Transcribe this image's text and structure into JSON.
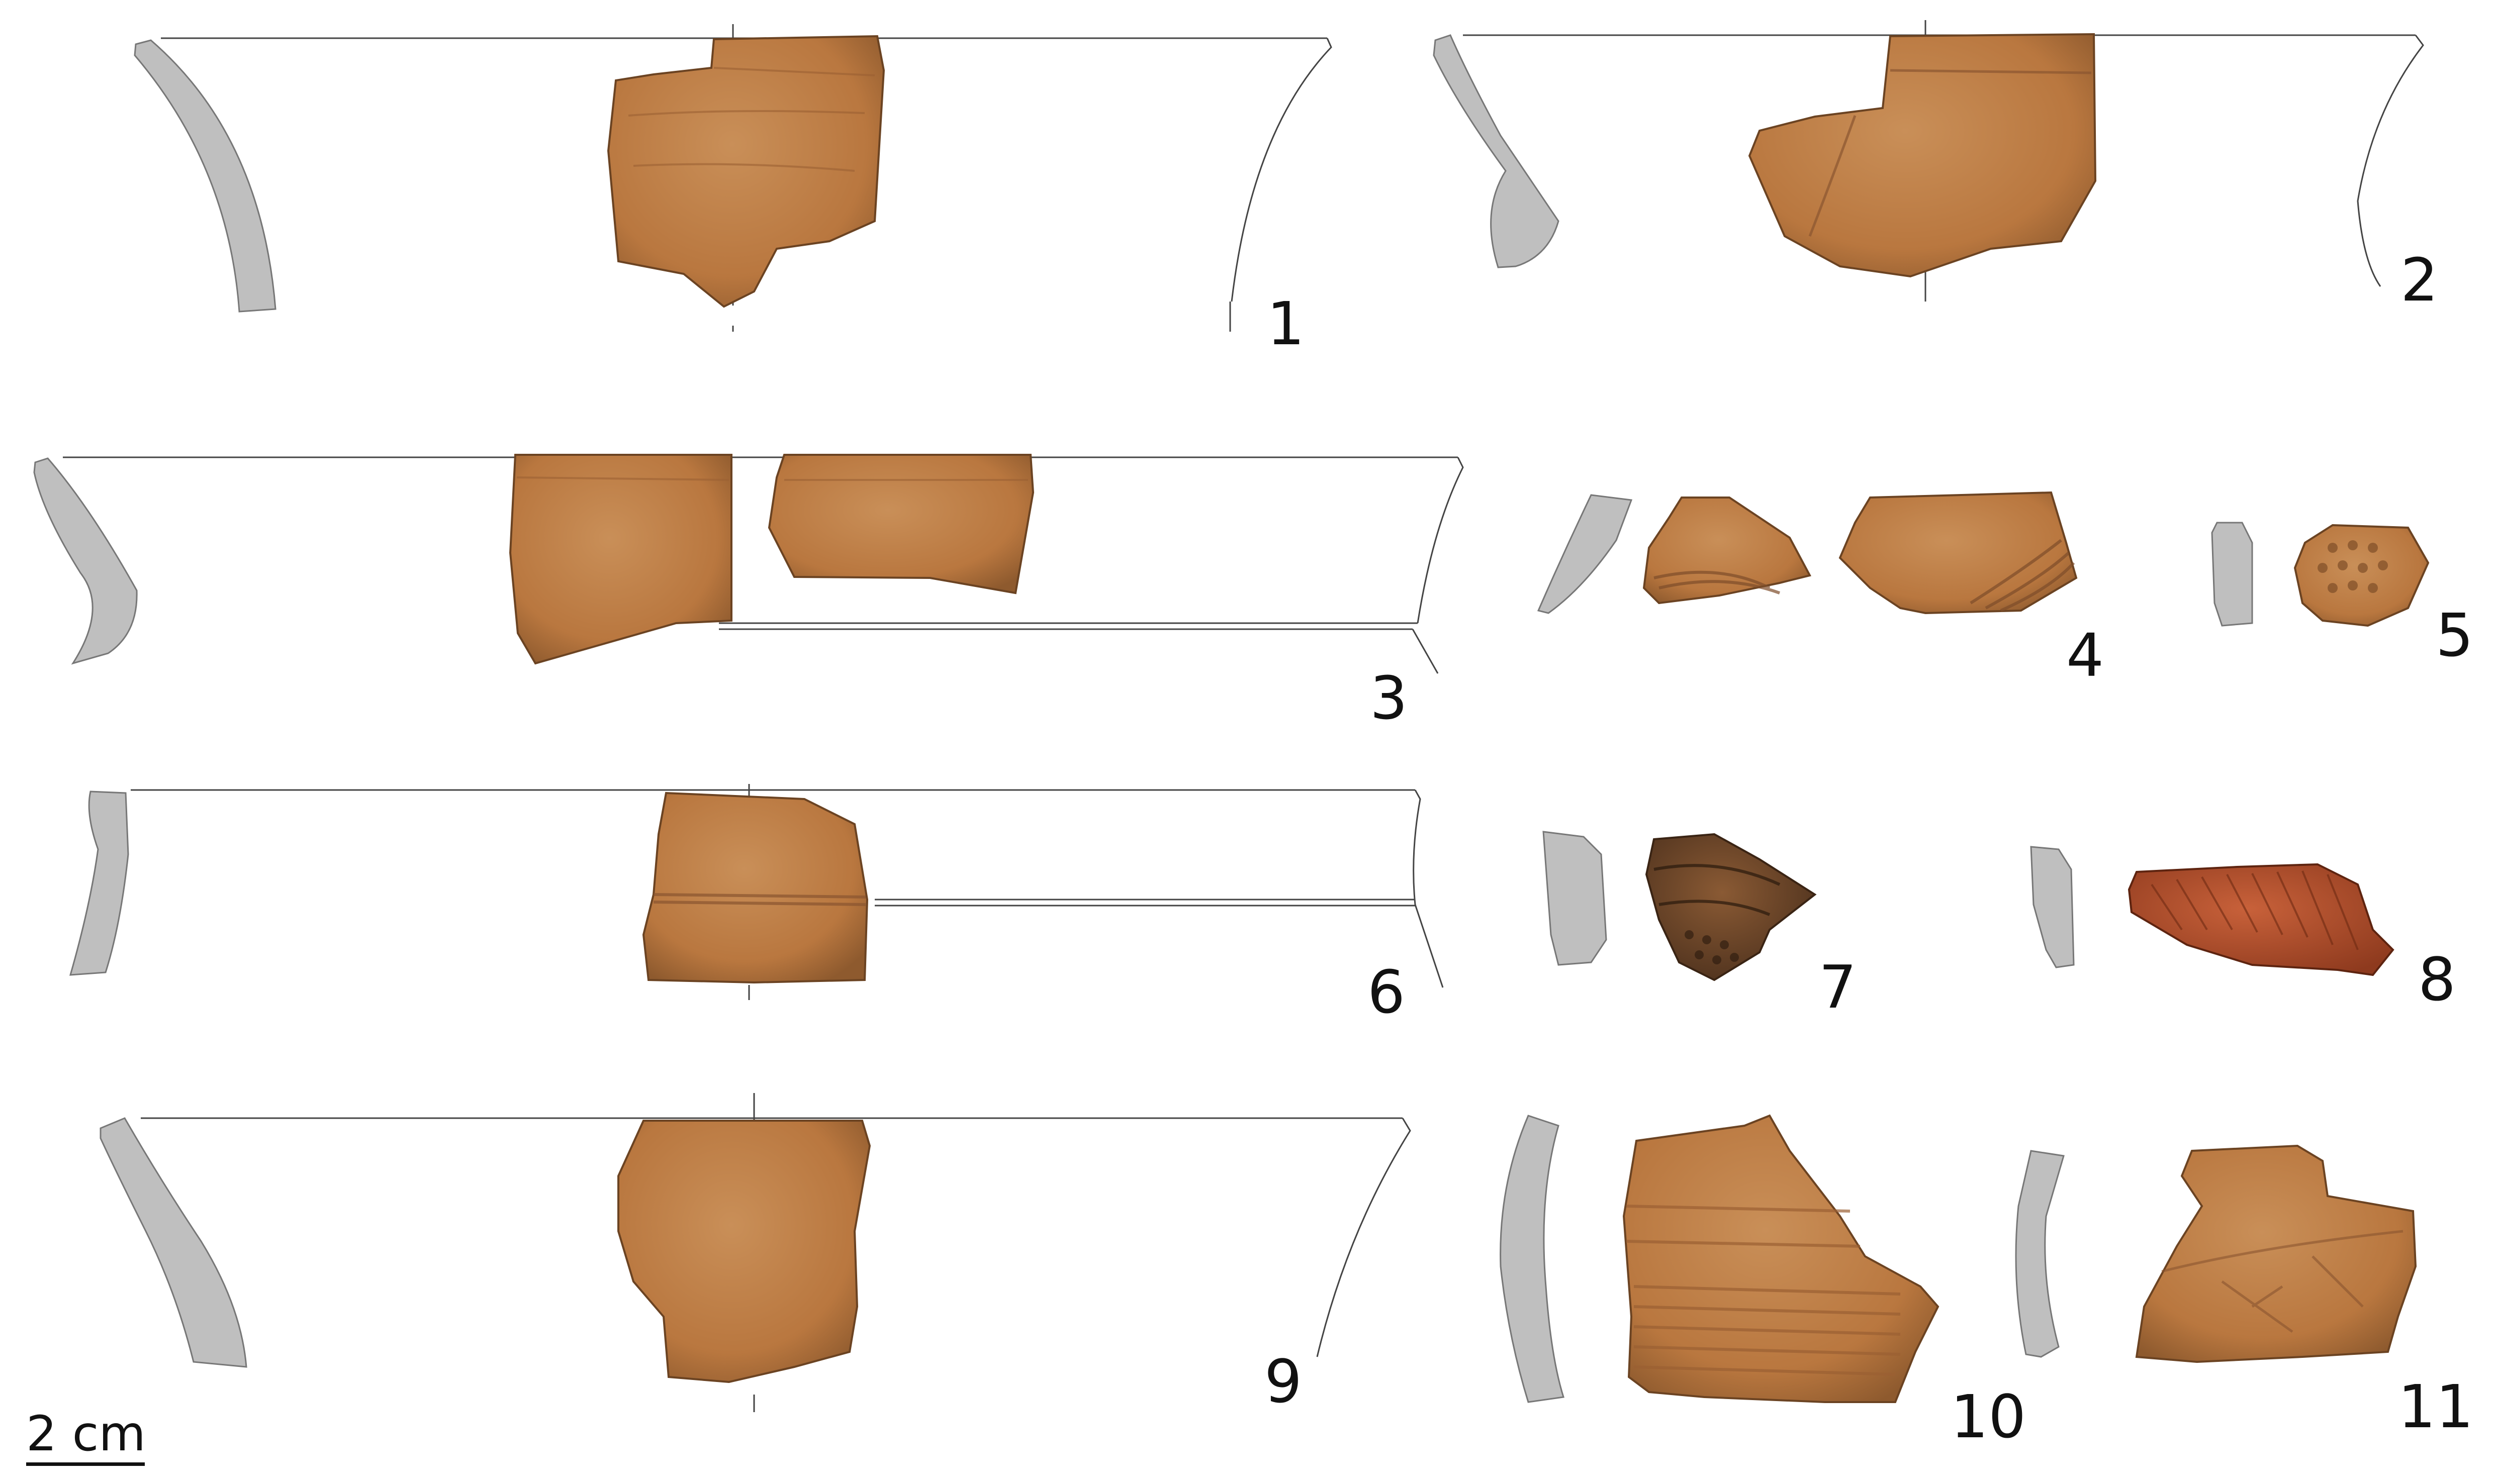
{
  "plate": {
    "background": "#ffffff",
    "outline_color": "#444444",
    "section_fill": "#bfbfbf",
    "sherd_color_main": "#b9773f",
    "sherd_color_light": "#c98f58",
    "sherd_color_dark": "#5b3a22",
    "sherd_color_red": "#b8502a"
  },
  "figures": [
    {
      "id": "1",
      "label": "1"
    },
    {
      "id": "2",
      "label": "2"
    },
    {
      "id": "3",
      "label": "3"
    },
    {
      "id": "4",
      "label": "4"
    },
    {
      "id": "5",
      "label": "5"
    },
    {
      "id": "6",
      "label": "6"
    },
    {
      "id": "7",
      "label": "7"
    },
    {
      "id": "8",
      "label": "8"
    },
    {
      "id": "9",
      "label": "9"
    },
    {
      "id": "10",
      "label": "10"
    },
    {
      "id": "11",
      "label": "11"
    }
  ],
  "scale": {
    "label": "2 cm"
  }
}
